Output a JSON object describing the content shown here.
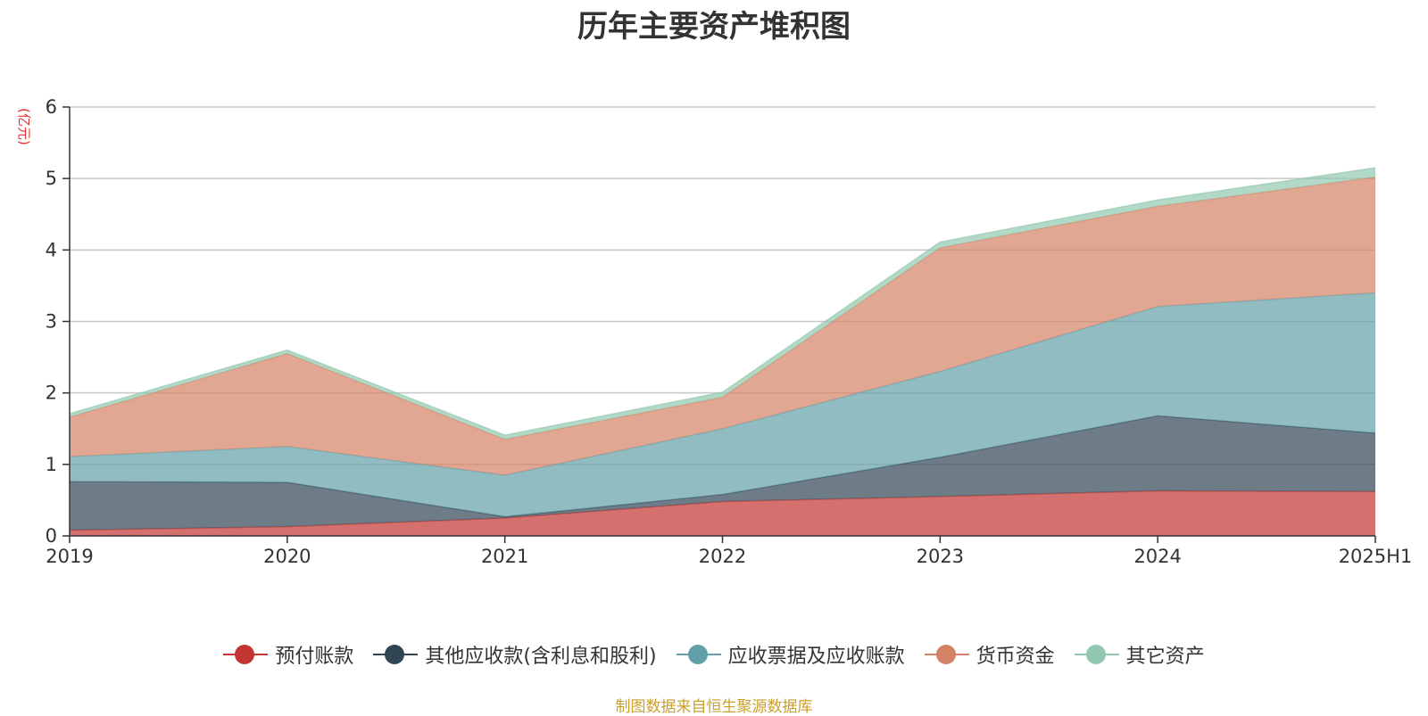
{
  "chart_data": {
    "type": "area",
    "stacked": true,
    "title": "历年主要资产堆积图",
    "ylabel": "(亿元)",
    "xlabel": "",
    "categories": [
      "2019",
      "2020",
      "2021",
      "2022",
      "2023",
      "2024",
      "2025H1"
    ],
    "ylim": [
      0,
      6
    ],
    "yticks": [
      "0",
      "1",
      "2",
      "3",
      "4",
      "5",
      "6"
    ],
    "grid": true,
    "legend_position": "bottom",
    "series": [
      {
        "name": "预付账款",
        "color": "#c23531",
        "values": [
          0.08,
          0.13,
          0.25,
          0.48,
          0.55,
          0.63,
          0.62
        ]
      },
      {
        "name": "其他应收款(含利息和股利)",
        "color": "#2f4554",
        "values": [
          0.68,
          0.62,
          0.02,
          0.1,
          0.55,
          1.05,
          0.82
        ]
      },
      {
        "name": "应收票据及应收账款",
        "color": "#61a0a8",
        "values": [
          0.35,
          0.5,
          0.58,
          0.92,
          1.2,
          1.53,
          1.96
        ]
      },
      {
        "name": "货币资金",
        "color": "#d48265",
        "values": [
          0.55,
          1.3,
          0.5,
          0.44,
          1.73,
          1.4,
          1.62
        ]
      },
      {
        "name": "其它资产",
        "color": "#91c7ae",
        "values": [
          0.05,
          0.05,
          0.06,
          0.07,
          0.08,
          0.09,
          0.13
        ]
      }
    ]
  },
  "source_note": "制图数据来自恒生聚源数据库"
}
